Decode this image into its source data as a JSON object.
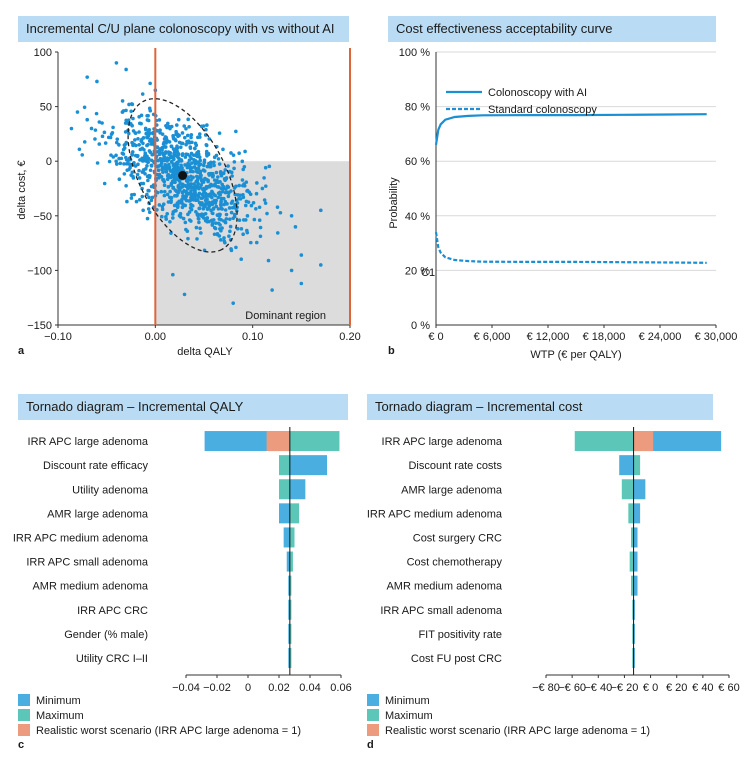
{
  "colors": {
    "blue": "#4aaee0",
    "teal": "#5cc7b8",
    "orange": "#ec9b7e",
    "line": "#1a8fd4",
    "red": "#e0633a",
    "grey": "#dcdcdc",
    "title_bg": "#b9dcf4"
  },
  "panel_a": {
    "title": "Incremental C/U plane colonoscopy with vs without AI",
    "label": "a",
    "region_label": "Dominant region",
    "chart_data": {
      "type": "scatter",
      "xlabel": "delta QALY",
      "ylabel": "delta cost, €",
      "xlim": [
        -0.1,
        0.2
      ],
      "ylim": [
        -150,
        100
      ],
      "xticks": [
        -0.1,
        0.0,
        0.1,
        0.2
      ],
      "xtick_labels": [
        "−0.10",
        "0.00",
        "0.10",
        "0.20"
      ],
      "yticks": [
        100,
        50,
        0,
        -50,
        -100,
        -150
      ],
      "ytick_labels": [
        "100",
        "50",
        "0",
        "−50",
        "−100",
        "−150"
      ],
      "vertical_lines": [
        0.0,
        0.2
      ],
      "mean": {
        "x": 0.028,
        "y": -13
      },
      "ellipse": {
        "cx": 0.028,
        "cy": -13,
        "rx": 0.105,
        "ry": 34,
        "angle": -28
      },
      "cloud": {
        "n": 1000,
        "mean_x": 0.028,
        "mean_y": -13,
        "sd_x": 0.035,
        "sd_y": 26,
        "corr": -0.55
      },
      "outliers": [
        [
          -0.07,
          77
        ],
        [
          -0.04,
          90
        ],
        [
          -0.03,
          84
        ],
        [
          -0.06,
          73
        ],
        [
          0.03,
          -122
        ],
        [
          0.08,
          -130
        ],
        [
          0.17,
          -95
        ],
        [
          0.14,
          -100
        ],
        [
          0.12,
          -118
        ],
        [
          0.15,
          -112
        ],
        [
          0.15,
          -86
        ],
        [
          0.14,
          -50
        ],
        [
          0.17,
          -45
        ],
        [
          -0.08,
          45
        ],
        [
          -0.07,
          38
        ],
        [
          0.0,
          65
        ]
      ]
    }
  },
  "panel_b": {
    "title": "Cost effectiveness acceptability curve",
    "label": "b",
    "stray_label": "C1",
    "chart_data": {
      "type": "line",
      "xlabel": "WTP (€ per QALY)",
      "ylabel": "Probability",
      "xlim": [
        0,
        30000
      ],
      "ylim": [
        0,
        1
      ],
      "xticks": [
        0,
        6000,
        12000,
        18000,
        24000,
        30000
      ],
      "xtick_labels": [
        "€ 0",
        "€ 6,000",
        "€ 12,000",
        "€ 18,000",
        "€ 24,000",
        "€ 30,000"
      ],
      "yticks": [
        0,
        0.2,
        0.4,
        0.6,
        0.8,
        1.0
      ],
      "ytick_labels": [
        "0 %",
        "20 %",
        "40 %",
        "60 %",
        "80 %",
        "100 %"
      ],
      "series": [
        {
          "name": "Colonoscopy with AI",
          "style": "solid",
          "x": [
            0,
            250,
            500,
            1000,
            2000,
            3500,
            5000,
            10000,
            15000,
            20000,
            25000,
            29000
          ],
          "values": [
            0.66,
            0.715,
            0.735,
            0.752,
            0.762,
            0.766,
            0.768,
            0.769,
            0.769,
            0.77,
            0.771,
            0.772
          ]
        },
        {
          "name": "Standard colonoscopy",
          "style": "dashed",
          "x": [
            0,
            250,
            500,
            1000,
            2000,
            3500,
            5000,
            10000,
            15000,
            20000,
            25000,
            29000
          ],
          "values": [
            0.34,
            0.285,
            0.265,
            0.248,
            0.238,
            0.234,
            0.232,
            0.231,
            0.231,
            0.23,
            0.229,
            0.228
          ]
        }
      ]
    }
  },
  "panel_c": {
    "title": "Tornado diagram – Incremental QALY",
    "label": "c",
    "legend": [
      "Minimum",
      "Maximum",
      "Realistic worst scenario (IRR APC large adenoma = 1)"
    ],
    "chart_data": {
      "type": "bar",
      "orientation": "tornado",
      "xlim": [
        -0.04,
        0.06
      ],
      "base": 0.027,
      "xticks": [
        -0.04,
        -0.02,
        0,
        0.02,
        0.04,
        0.06
      ],
      "xtick_labels": [
        "−0.04",
        "−0.02",
        "0",
        "0.02",
        "0.04",
        "0.06"
      ],
      "categories": [
        "IRR APC large adenoma",
        "Discount rate efficacy",
        "Utility adenoma",
        "AMR large adenoma",
        "IRR APC medium adenoma",
        "IRR APC small adenoma",
        "AMR medium adenoma",
        "IRR APC CRC",
        "Gender (% male)",
        "Utility CRC I–II"
      ],
      "series": [
        {
          "name": "Minimum",
          "values": [
            -0.028,
            0.051,
            0.037,
            0.02,
            0.023,
            0.025,
            0.026,
            0.026,
            0.026,
            0.026
          ]
        },
        {
          "name": "Maximum",
          "values": [
            0.059,
            0.02,
            0.02,
            0.033,
            0.03,
            0.029,
            0.028,
            0.028,
            0.028,
            0.028
          ]
        }
      ],
      "worst_scenario": {
        "category": "IRR APC large adenoma",
        "value": 0.012
      }
    }
  },
  "panel_d": {
    "title": "Tornado diagram – Incremental cost",
    "label": "d",
    "legend": [
      "Minimum",
      "Maximum",
      "Realistic worst scenario (IRR APC large adenoma = 1)"
    ],
    "chart_data": {
      "type": "bar",
      "orientation": "tornado",
      "xlim": [
        -80,
        60
      ],
      "base": -13,
      "xticks": [
        -80,
        -60,
        -40,
        -20,
        0,
        20,
        40,
        60
      ],
      "xtick_labels": [
        "−€ 80",
        "−€ 60",
        "−€ 40",
        "−€ 20",
        "€ 0",
        "€ 20",
        "€ 40",
        "€ 60"
      ],
      "categories": [
        "IRR APC large adenoma",
        "Discount rate costs",
        "AMR large adenoma",
        "IRR APC medium adenoma",
        "Cost surgery CRC",
        "Cost chemotherapy",
        "AMR medium adenoma",
        "IRR APC small adenoma",
        "FIT positivity rate",
        "Cost FU post CRC"
      ],
      "series": [
        {
          "name": "Minimum",
          "values": [
            54,
            -24,
            -4,
            -8,
            -10,
            -10,
            -10,
            -12,
            -12,
            -12
          ]
        },
        {
          "name": "Maximum",
          "values": [
            -58,
            -8,
            -22,
            -17,
            -15,
            -16,
            -15,
            -14,
            -14,
            -14
          ]
        }
      ],
      "worst_scenario": {
        "category": "IRR APC large adenoma",
        "value": 2
      }
    }
  }
}
